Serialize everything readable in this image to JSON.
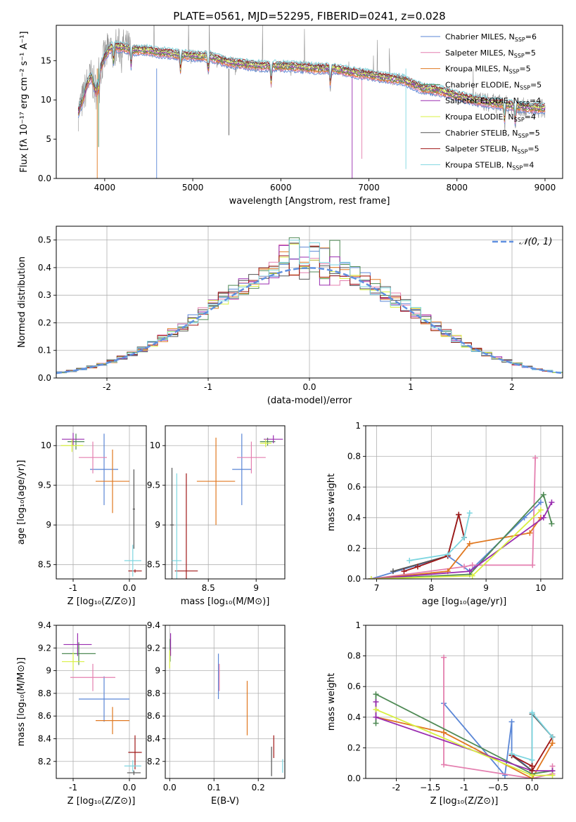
{
  "title": "PLATE=0561, MJD=52295, FIBERID=0241, z=0.028",
  "colors": {
    "chabrier_miles": "#5a86d6",
    "salpeter_miles": "#e47faf",
    "kroupa_miles": "#e07820",
    "chabrier_elodie": "#4f8a55",
    "salpeter_elodie": "#9a2db0",
    "kroupa_elodie": "#d8f040",
    "chabrier_stelib": "#555555",
    "salpeter_stelib": "#a01818",
    "kroupa_stelib": "#7ed6e0",
    "normal": "#6090e0",
    "data": "#909090"
  },
  "chart_data": [
    {
      "id": "spectrum",
      "type": "line",
      "xlabel": "wavelength [Angstrom, rest frame]",
      "ylabel": "Flux [fλ 10⁻¹⁷ erg cm⁻² s⁻¹ A⁻¹]",
      "xlim": [
        3450,
        9200
      ],
      "ylim": [
        0,
        19.5
      ],
      "xticks": [
        4000,
        5000,
        6000,
        7000,
        8000,
        9000
      ],
      "yticks": [
        0,
        5,
        10,
        15
      ],
      "grid": false,
      "legend_position": "top-right",
      "legend": [
        "Chabrier MILES, N_SSP=6",
        "Salpeter MILES, N_SSP=5",
        "Kroupa MILES, N_SSP=5",
        "Chabrier ELODIE, N_SSP=5",
        "Salpeter ELODIE, N_SSP=4",
        "Kroupa ELODIE, N_SSP=4",
        "Chabrier STELIB, N_SSP=5",
        "Salpeter STELIB, N_SSP=5",
        "Kroupa STELIB, N_SSP=4"
      ],
      "continuum": {
        "x": [
          3700,
          3750,
          3800,
          3850,
          3900,
          3950,
          4000,
          4050,
          4100,
          4200,
          4300,
          4400,
          4500,
          4600,
          4700,
          4800,
          4900,
          5000,
          5200,
          5400,
          5600,
          5800,
          6000,
          6200,
          6400,
          6600,
          6800,
          7000,
          7200,
          7400,
          7600,
          7800,
          8000,
          8200,
          8400,
          8600,
          8800,
          9000,
          9200
        ],
        "y": [
          8.5,
          10,
          12,
          13,
          11,
          14,
          15.5,
          16.5,
          16.8,
          16.7,
          16.4,
          16.3,
          16.3,
          16,
          16,
          15.8,
          15.7,
          15.6,
          15.5,
          14.8,
          14.5,
          14.3,
          14.3,
          14.2,
          14,
          14,
          13.5,
          13.2,
          12.8,
          12.5,
          11.5,
          11.2,
          10.5,
          10,
          9.6,
          9.3,
          9,
          8.9,
          8.7
        ]
      },
      "absorption_x": [
        3934,
        4102,
        4300,
        4861,
        5175,
        5890,
        6563,
        8542,
        8662
      ]
    },
    {
      "id": "residuals",
      "type": "bar",
      "xlabel": "(data-model)/error",
      "ylabel": "Normed distribution",
      "xlim": [
        -2.5,
        2.5
      ],
      "ylim": [
        0,
        0.55
      ],
      "xticks": [
        -2,
        -1,
        0,
        1,
        2
      ],
      "yticks": [
        0,
        0.1,
        0.2,
        0.3,
        0.4,
        0.5
      ],
      "grid": true,
      "legend_position": "top-right",
      "legend": [
        "𝒩(0, 1)"
      ],
      "bin_width": 0.1
    },
    {
      "id": "age_vs_Z",
      "type": "scatter",
      "xlabel": "Z [log₁₀(Z/Z⊙)]",
      "ylabel": "age  [log₁₀(age/yr)]",
      "xlim": [
        -1.3,
        0.3
      ],
      "ylim": [
        8.32,
        10.25
      ],
      "xticks": [
        -1,
        0
      ],
      "yticks": [
        8.5,
        9.0,
        9.5,
        10.0
      ],
      "grid": true,
      "points": [
        {
          "key": "chabrier_miles",
          "x": -0.45,
          "y": 9.7,
          "xerr": 0.25,
          "yerr": 0.45
        },
        {
          "key": "salpeter_miles",
          "x": -0.65,
          "y": 9.85,
          "xerr": 0.25,
          "yerr": 0.2
        },
        {
          "key": "kroupa_miles",
          "x": -0.3,
          "y": 9.55,
          "xerr": 0.3,
          "yerr": 0.4
        },
        {
          "key": "chabrier_elodie",
          "x": -0.95,
          "y": 10.05,
          "xerr": 0.15,
          "yerr": 0.1
        },
        {
          "key": "salpeter_elodie",
          "x": -1.0,
          "y": 10.08,
          "xerr": 0.2,
          "yerr": 0.08
        },
        {
          "key": "kroupa_elodie",
          "x": -1.02,
          "y": 10.0,
          "xerr": 0.2,
          "yerr": 0.08
        },
        {
          "key": "chabrier_stelib",
          "x": 0.08,
          "y": 9.2,
          "xerr": 0.02,
          "yerr": 0.5
        },
        {
          "key": "salpeter_stelib",
          "x": 0.1,
          "y": 8.42,
          "xerr": 0.12,
          "yerr": 0.02
        },
        {
          "key": "kroupa_stelib",
          "x": 0.06,
          "y": 8.55,
          "xerr": 0.15,
          "yerr": 0.2
        }
      ]
    },
    {
      "id": "age_vs_mass",
      "type": "scatter",
      "xlabel": "mass [log₁₀(M/M⊙)]",
      "ylabel": "",
      "xlim": [
        8.05,
        9.3
      ],
      "ylim": [
        8.32,
        10.25
      ],
      "xticks": [
        8.5,
        9.0
      ],
      "yticks": [
        8.5,
        9.0,
        9.5,
        10.0
      ],
      "grid": true,
      "points": [
        {
          "key": "chabrier_miles",
          "x": 8.85,
          "y": 9.7,
          "xerr": 0.1,
          "yerr": 0.45
        },
        {
          "key": "salpeter_miles",
          "x": 8.95,
          "y": 9.85,
          "xerr": 0.15,
          "yerr": 0.2
        },
        {
          "key": "kroupa_miles",
          "x": 8.58,
          "y": 9.55,
          "xerr": 0.2,
          "yerr": 0.55
        },
        {
          "key": "chabrier_elodie",
          "x": 9.12,
          "y": 10.05,
          "xerr": 0.08,
          "yerr": 0.05
        },
        {
          "key": "salpeter_elodie",
          "x": 9.18,
          "y": 10.08,
          "xerr": 0.1,
          "yerr": 0.05
        },
        {
          "key": "kroupa_elodie",
          "x": 9.1,
          "y": 10.03,
          "xerr": 0.06,
          "yerr": 0.05
        },
        {
          "key": "chabrier_stelib",
          "x": 8.12,
          "y": 9.0,
          "xerr": 0.02,
          "yerr": 0.72
        },
        {
          "key": "salpeter_stelib",
          "x": 8.27,
          "y": 8.42,
          "xerr": 0.12,
          "yerr": 1.23
        },
        {
          "key": "kroupa_stelib",
          "x": 8.17,
          "y": 8.55,
          "xerr": 0.05,
          "yerr": 1.1
        }
      ]
    },
    {
      "id": "weight_vs_age",
      "type": "line",
      "xlabel": "age  [log₁₀(age/yr)]",
      "ylabel": "mass weight",
      "xlim": [
        6.8,
        10.4
      ],
      "ylim": [
        0,
        1.0
      ],
      "xticks": [
        7,
        8,
        9,
        10
      ],
      "yticks": [
        0.0,
        0.2,
        0.4,
        0.6,
        0.8,
        1.0
      ],
      "grid": true,
      "series": [
        {
          "key": "chabrier_miles",
          "x": [
            6.9,
            8.3,
            8.7,
            9.7,
            10.0
          ],
          "y": [
            0.0,
            0.15,
            0.05,
            0.4,
            0.5
          ]
        },
        {
          "key": "salpeter_miles",
          "x": [
            6.9,
            8.6,
            8.75,
            9.85,
            9.9
          ],
          "y": [
            0.0,
            0.08,
            0.09,
            0.09,
            0.79
          ]
        },
        {
          "key": "kroupa_miles",
          "x": [
            6.9,
            8.3,
            8.7,
            9.8,
            10.0
          ],
          "y": [
            0.0,
            0.05,
            0.23,
            0.3,
            0.4
          ]
        },
        {
          "key": "chabrier_elodie",
          "x": [
            6.9,
            8.7,
            10.05,
            10.2
          ],
          "y": [
            0.0,
            0.03,
            0.55,
            0.36
          ]
        },
        {
          "key": "salpeter_elodie",
          "x": [
            6.9,
            8.7,
            10.05,
            10.2
          ],
          "y": [
            0.0,
            0.05,
            0.4,
            0.5
          ]
        },
        {
          "key": "kroupa_elodie",
          "x": [
            6.9,
            8.75,
            10.0
          ],
          "y": [
            0.0,
            0.02,
            0.45
          ]
        },
        {
          "key": "chabrier_stelib",
          "x": [
            7.3,
            8.3,
            8.5,
            8.6
          ],
          "y": [
            0.05,
            0.15,
            0.42,
            0.27
          ]
        },
        {
          "key": "salpeter_stelib",
          "x": [
            7.5,
            7.75,
            8.3,
            8.5,
            8.6
          ],
          "y": [
            0.05,
            0.08,
            0.15,
            0.42,
            0.27
          ]
        },
        {
          "key": "kroupa_stelib",
          "x": [
            7.6,
            8.3,
            8.6,
            8.7
          ],
          "y": [
            0.12,
            0.16,
            0.27,
            0.43
          ]
        }
      ]
    },
    {
      "id": "mass_vs_Z",
      "type": "scatter",
      "xlabel": "Z [log₁₀(Z/Z⊙)]",
      "ylabel": "mass [log₁₀(M/M⊙)]",
      "xlim": [
        -1.3,
        0.3
      ],
      "ylim": [
        8.05,
        9.4
      ],
      "xticks": [
        -1,
        0
      ],
      "yticks": [
        8.2,
        8.4,
        8.6,
        8.8,
        9.0,
        9.2,
        9.4
      ],
      "grid": true,
      "points": [
        {
          "key": "chabrier_miles",
          "x": -0.45,
          "y": 8.75,
          "xerr": 0.45,
          "yerr": 0.2
        },
        {
          "key": "salpeter_miles",
          "x": -0.65,
          "y": 8.94,
          "xerr": 0.4,
          "yerr": 0.12
        },
        {
          "key": "kroupa_miles",
          "x": -0.3,
          "y": 8.56,
          "xerr": 0.3,
          "yerr": 0.12
        },
        {
          "key": "chabrier_elodie",
          "x": -0.9,
          "y": 9.15,
          "xerr": 0.3,
          "yerr": 0.1
        },
        {
          "key": "salpeter_elodie",
          "x": -0.92,
          "y": 9.23,
          "xerr": 0.25,
          "yerr": 0.1
        },
        {
          "key": "kroupa_elodie",
          "x": -1.0,
          "y": 9.08,
          "xerr": 0.2,
          "yerr": 0.08
        },
        {
          "key": "chabrier_stelib",
          "x": 0.08,
          "y": 8.1,
          "xerr": 0.12,
          "yerr": 0.02
        },
        {
          "key": "salpeter_stelib",
          "x": 0.1,
          "y": 8.28,
          "xerr": 0.12,
          "yerr": 0.15
        },
        {
          "key": "kroupa_stelib",
          "x": 0.06,
          "y": 8.16,
          "xerr": 0.15,
          "yerr": 0.05
        }
      ]
    },
    {
      "id": "mass_vs_ebv",
      "type": "scatter",
      "xlabel": "E(B-V)",
      "ylabel": "",
      "xlim": [
        -0.01,
        0.26
      ],
      "ylim": [
        8.05,
        9.4
      ],
      "xticks": [
        0.0,
        0.1,
        0.2
      ],
      "yticks": [
        8.2,
        8.4,
        8.6,
        8.8,
        9.0,
        9.2,
        9.4
      ],
      "grid": true,
      "points": [
        {
          "key": "chabrier_miles",
          "x": 0.11,
          "y": 8.95,
          "xerr": 0,
          "yerr": 0.2
        },
        {
          "key": "salpeter_miles",
          "x": 0.112,
          "y": 8.94,
          "xerr": 0,
          "yerr": 0.12
        },
        {
          "key": "kroupa_miles",
          "x": 0.175,
          "y": 8.67,
          "xerr": 0,
          "yerr": 0.24
        },
        {
          "key": "chabrier_elodie",
          "x": 0.001,
          "y": 9.18,
          "xerr": 0,
          "yerr": 0.1
        },
        {
          "key": "salpeter_elodie",
          "x": 0.002,
          "y": 9.23,
          "xerr": 0,
          "yerr": 0.1
        },
        {
          "key": "kroupa_elodie",
          "x": 0.0,
          "y": 9.1,
          "xerr": 0,
          "yerr": 0.08
        },
        {
          "key": "chabrier_stelib",
          "x": 0.23,
          "y": 8.2,
          "xerr": 0,
          "yerr": 0.13
        },
        {
          "key": "salpeter_stelib",
          "x": 0.235,
          "y": 8.33,
          "xerr": 0,
          "yerr": 0.1
        },
        {
          "key": "kroupa_stelib",
          "x": 0.255,
          "y": 8.16,
          "xerr": 0,
          "yerr": 0.06
        }
      ]
    },
    {
      "id": "weight_vs_Z",
      "type": "line",
      "xlabel": "Z [log₁₀(Z/Z⊙)]",
      "ylabel": "mass weight",
      "xlim": [
        -2.45,
        0.45
      ],
      "ylim": [
        0,
        1.0
      ],
      "xticks": [
        -2.0,
        -1.5,
        -1.0,
        -0.5,
        0.0
      ],
      "yticks": [
        0.0,
        0.2,
        0.4,
        0.6,
        0.8,
        1.0
      ],
      "grid": true,
      "series": [
        {
          "key": "chabrier_miles",
          "x": [
            -1.3,
            -0.4,
            -0.3,
            -0.3,
            0.0
          ],
          "y": [
            0.49,
            0.02,
            0.37,
            0.16,
            0.05
          ]
        },
        {
          "key": "salpeter_miles",
          "x": [
            -1.3,
            -1.3,
            0.0,
            0.3,
            0.3
          ],
          "y": [
            0.79,
            0.09,
            0.0,
            0.03,
            0.08
          ]
        },
        {
          "key": "kroupa_miles",
          "x": [
            -2.3,
            -1.3,
            0.0,
            0.3,
            0.3
          ],
          "y": [
            0.4,
            0.3,
            0.0,
            0.23,
            0.27
          ]
        },
        {
          "key": "chabrier_elodie",
          "x": [
            -2.3,
            -2.3,
            0.0,
            0.3
          ],
          "y": [
            0.36,
            0.55,
            0.03,
            0.05
          ]
        },
        {
          "key": "salpeter_elodie",
          "x": [
            -2.3,
            -2.3,
            0.0,
            0.3
          ],
          "y": [
            0.5,
            0.4,
            0.05,
            0.05
          ]
        },
        {
          "key": "kroupa_elodie",
          "x": [
            -2.3,
            0.0,
            0.3
          ],
          "y": [
            0.45,
            0.02,
            0.02
          ]
        },
        {
          "key": "chabrier_stelib",
          "x": [
            -0.3,
            0.0,
            0.0,
            0.3
          ],
          "y": [
            0.15,
            0.05,
            0.42,
            0.27
          ]
        },
        {
          "key": "salpeter_stelib",
          "x": [
            -0.3,
            0.0,
            0.0,
            0.3
          ],
          "y": [
            0.15,
            0.08,
            0.05,
            0.27
          ]
        },
        {
          "key": "kroupa_stelib",
          "x": [
            -0.3,
            0.0,
            0.0,
            0.3
          ],
          "y": [
            0.16,
            0.12,
            0.43,
            0.27
          ]
        }
      ]
    }
  ]
}
